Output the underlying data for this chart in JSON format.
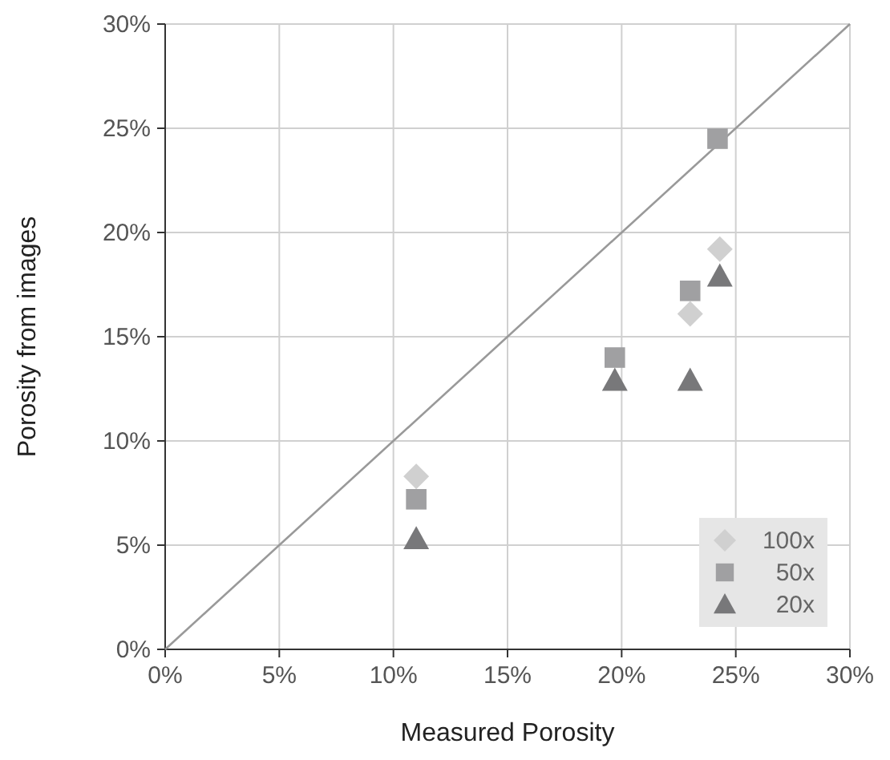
{
  "chart_data": {
    "type": "scatter",
    "xlabel": "Measured Porosity",
    "ylabel": "Porosity from images",
    "xlim": [
      0,
      30
    ],
    "ylim": [
      0,
      30
    ],
    "xticks": [
      {
        "value": 0,
        "label": "0%"
      },
      {
        "value": 5,
        "label": "5%"
      },
      {
        "value": 10,
        "label": "10%"
      },
      {
        "value": 15,
        "label": "15%"
      },
      {
        "value": 20,
        "label": "20%"
      },
      {
        "value": 25,
        "label": "25%"
      },
      {
        "value": 30,
        "label": "30%"
      }
    ],
    "yticks": [
      {
        "value": 0,
        "label": "0%"
      },
      {
        "value": 5,
        "label": "5%"
      },
      {
        "value": 10,
        "label": "10%"
      },
      {
        "value": 15,
        "label": "15%"
      },
      {
        "value": 20,
        "label": "20%"
      },
      {
        "value": 25,
        "label": "25%"
      },
      {
        "value": 30,
        "label": "30%"
      }
    ],
    "grid": true,
    "legend": "bottom right",
    "series": [
      {
        "type": "line",
        "x": [
          0,
          30
        ],
        "values": [
          0,
          30
        ],
        "color": "#999999",
        "marker": "none",
        "line_style": "solid"
      },
      {
        "name": "100x",
        "marker": "diamond",
        "color": "#d0d0d0",
        "x": [
          11.0,
          23.0,
          24.3
        ],
        "values": [
          8.3,
          16.1,
          19.2
        ]
      },
      {
        "name": "50x",
        "marker": "square",
        "color": "#a0a0a2",
        "x": [
          11.0,
          19.7,
          23.0,
          24.2
        ],
        "values": [
          7.2,
          14.0,
          17.2,
          24.5
        ]
      },
      {
        "name": "20x",
        "marker": "triangle",
        "color": "#78787a",
        "x": [
          11.0,
          19.7,
          23.0,
          24.3
        ],
        "values": [
          5.3,
          12.9,
          12.9,
          17.9
        ]
      }
    ]
  }
}
